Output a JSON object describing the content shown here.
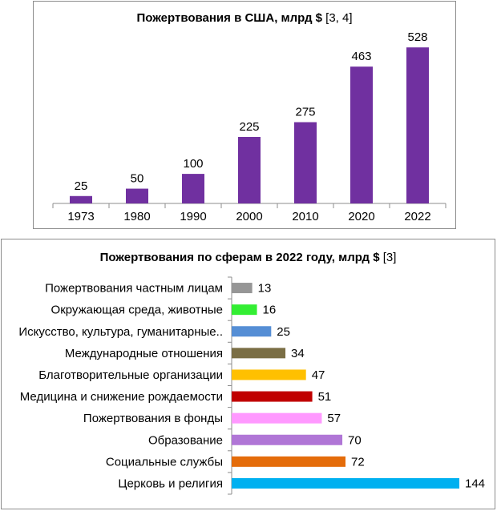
{
  "chart_data": [
    {
      "type": "bar",
      "orientation": "vertical",
      "title_main": "Пожертвования в США, млрд $",
      "title_ref": "[3, 4]",
      "categories": [
        "1973",
        "1980",
        "1990",
        "2000",
        "2010",
        "2020",
        "2022"
      ],
      "values": [
        25,
        50,
        100,
        225,
        275,
        463,
        528
      ],
      "value_labels": [
        "25",
        "50",
        "100",
        "225",
        "275",
        "463",
        "528"
      ],
      "ylim": [
        0,
        580
      ],
      "bar_color": "#7030a0",
      "grid": false,
      "legend": "none"
    },
    {
      "type": "bar",
      "orientation": "horizontal",
      "title_main": "Пожертвования по сферам в 2022 году, млрд $",
      "title_ref": "[3]",
      "categories": [
        "Пожертвования частным лицам",
        "Окружающая среда, животные",
        "Искусство, культура, гуманитарные..",
        "Международные отношения",
        "Благотворительные организации",
        "Медицина и снижение рождаемости",
        "Пожертвования в фонды",
        "Образование",
        "Социальные службы",
        "Церковь и религия"
      ],
      "values": [
        13,
        16,
        25,
        34,
        47,
        51,
        57,
        70,
        72,
        144
      ],
      "value_labels": [
        "13",
        "16",
        "25",
        "34",
        "47",
        "51",
        "57",
        "70",
        "72",
        "144"
      ],
      "xlim": [
        0,
        144
      ],
      "colors": [
        "#969696",
        "#33ee33",
        "#558ed5",
        "#7a6e45",
        "#ffc000",
        "#c00000",
        "#ff99ff",
        "#b076d6",
        "#e46c0a",
        "#00b0f0"
      ],
      "grid": false,
      "legend": "none"
    }
  ]
}
